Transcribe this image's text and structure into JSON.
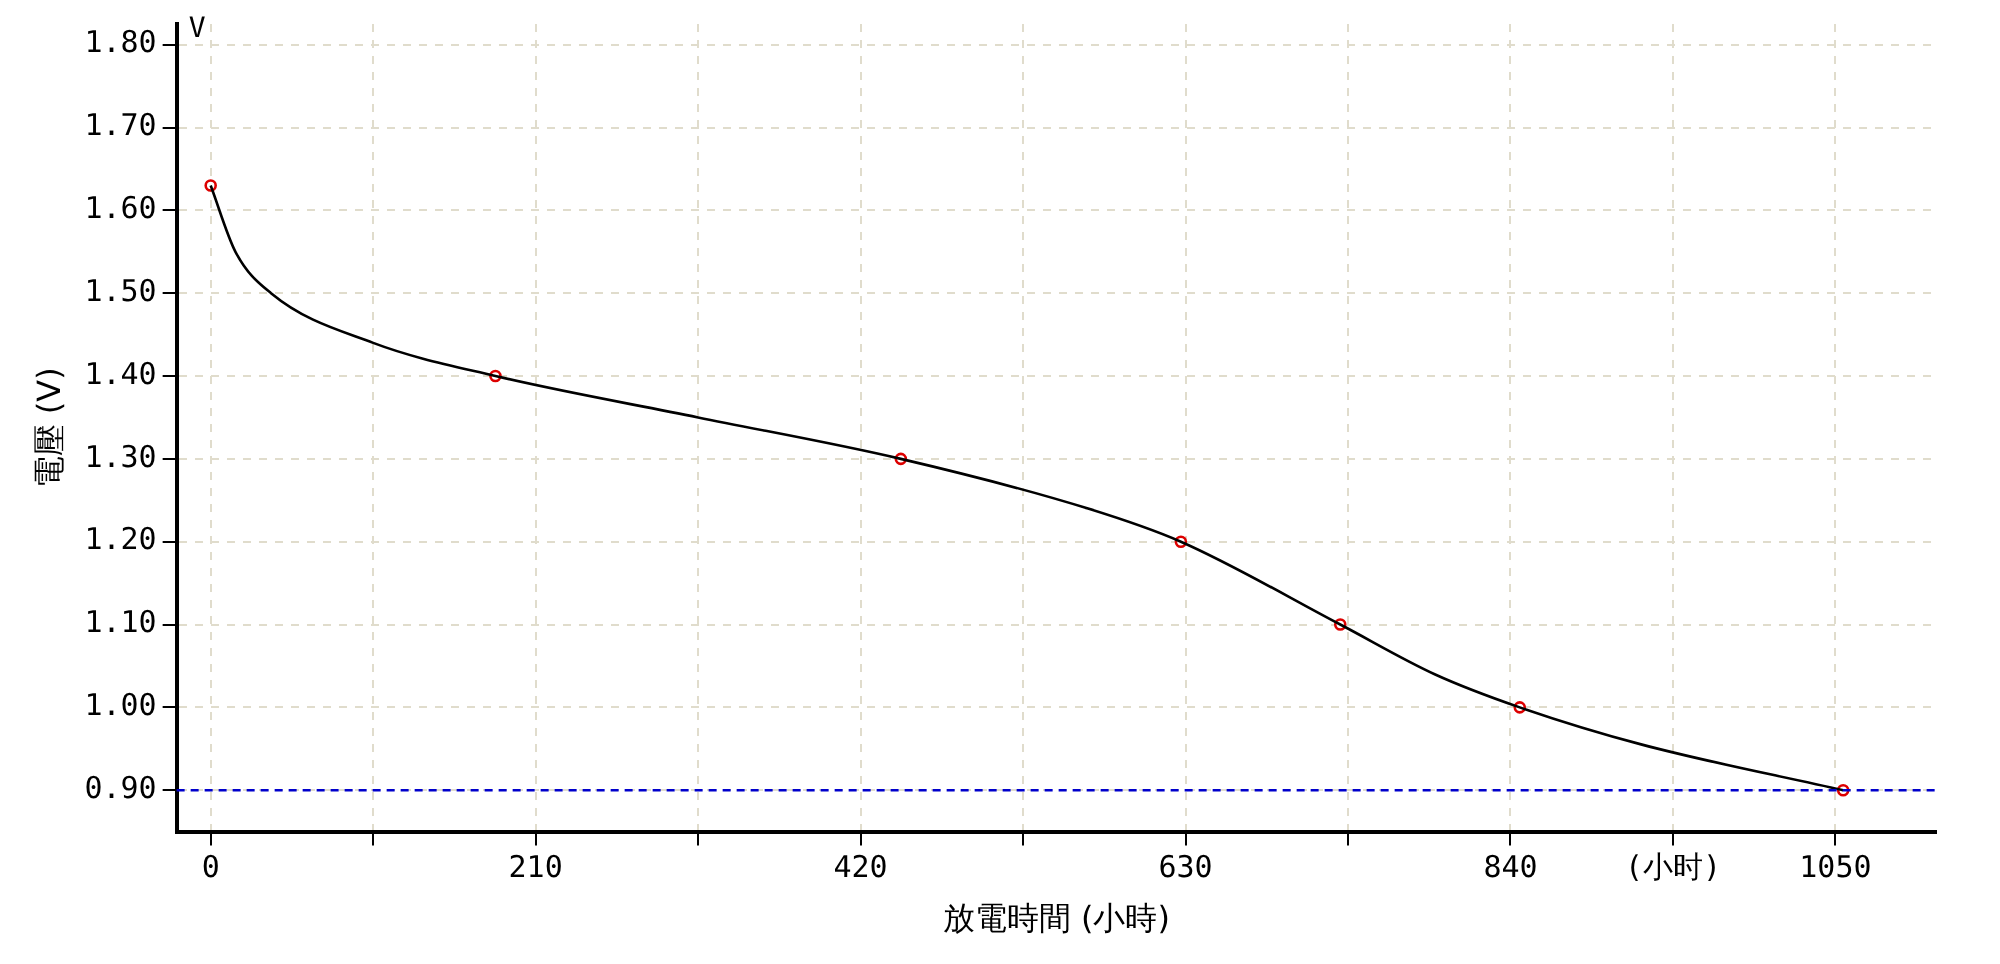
{
  "chart_data": {
    "type": "line",
    "xlabel": "放電時間 (小時)",
    "ylabel": "電壓 (V)",
    "annotations": [
      "V"
    ],
    "xlim": [
      -22,
      1115
    ],
    "ylim": [
      0.85,
      1.825
    ],
    "xticks": [
      0,
      {
        "value": 105,
        "label": null
      },
      210,
      {
        "value": 315,
        "label": null
      },
      420,
      {
        "value": 525,
        "label": null
      },
      630,
      {
        "value": 735,
        "label": null
      },
      840,
      {
        "value": 945,
        "label": "(小时)"
      },
      1050
    ],
    "yticks": [
      {
        "value": 0.9,
        "label": "0.90"
      },
      {
        "value": 1.0,
        "label": "1.00"
      },
      {
        "value": 1.1,
        "label": "1.10"
      },
      {
        "value": 1.2,
        "label": "1.20"
      },
      {
        "value": 1.3,
        "label": "1.30"
      },
      {
        "value": 1.4,
        "label": "1.40"
      },
      {
        "value": 1.5,
        "label": "1.50"
      },
      {
        "value": 1.6,
        "label": "1.60"
      },
      {
        "value": 1.7,
        "label": "1.70"
      },
      {
        "value": 1.8,
        "label": "1.80"
      }
    ],
    "grid": true,
    "legend": false,
    "series": [
      {
        "color": "#000000",
        "marker": "none",
        "line_style": "solid",
        "x": [
          0,
          16,
          39,
          105,
          184,
          315,
          446,
          567,
          627,
          730,
          791,
          846,
          925,
          1055
        ],
        "values": [
          1.63,
          1.55,
          1.5,
          1.44,
          1.4,
          1.35,
          1.3,
          1.24,
          1.2,
          1.1,
          1.04,
          1.0,
          0.955,
          0.9
        ]
      },
      {
        "type": "scatter",
        "color": "#dd0000",
        "marker": "circle",
        "x": [
          0,
          184,
          446,
          627,
          730,
          846,
          1055
        ],
        "values": [
          1.63,
          1.4,
          1.3,
          1.2,
          1.1,
          1.0,
          0.9
        ]
      }
    ],
    "ref_lines": [
      {
        "axis": "y",
        "value": 0.9,
        "color": "#0000cc",
        "line_style": "dashed"
      }
    ]
  }
}
